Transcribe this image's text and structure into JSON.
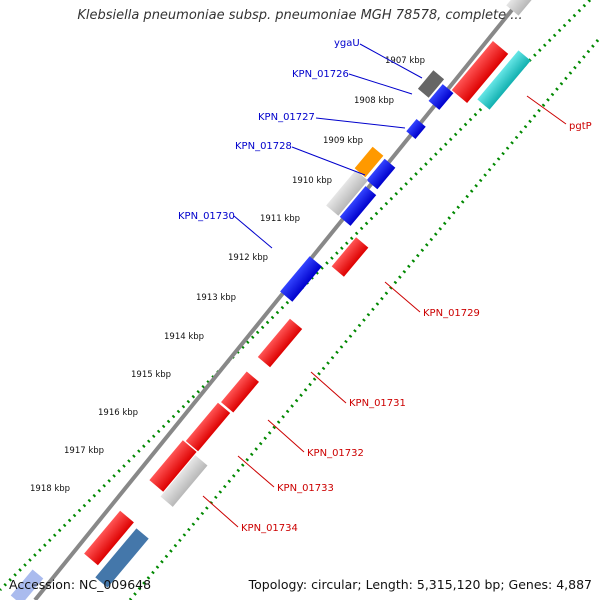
{
  "title": "Klebsiella pneumoniae subsp. pneumoniae MGH 78578, complete ...",
  "footer": {
    "accession": "Accession: NC_009648",
    "summary": "Topology: circular; Length: 5,315,120 bp; Genes: 4,887"
  },
  "colors": {
    "forward_gene": "#0000ee",
    "reverse_gene": "#ee0000",
    "orange_gene": "#ff9900",
    "grey_gene": "#cccccc",
    "dark_grey_gene": "#666666",
    "cyan_gene": "#22cccc",
    "steel_gene": "#4477aa",
    "backbone": "#888888",
    "dots": "#008800",
    "label_forward": "#0000cc",
    "label_reverse": "#cc0000"
  },
  "ticks": [
    "1907 kbp",
    "1908 kbp",
    "1909 kbp",
    "1910 kbp",
    "1911 kbp",
    "1912 kbp",
    "1913 kbp",
    "1914 kbp",
    "1915 kbp",
    "1916 kbp",
    "1917 kbp",
    "1918 kbp"
  ],
  "gene_labels": {
    "ygaU": "ygaU",
    "KPN_01726": "KPN_01726",
    "KPN_01727": "KPN_01727",
    "KPN_01728": "KPN_01728",
    "KPN_01730": "KPN_01730",
    "pgtP": "pgtP",
    "KPN_01729": "KPN_01729",
    "KPN_01731": "KPN_01731",
    "KPN_01732": "KPN_01732",
    "KPN_01733": "KPN_01733",
    "KPN_01734": "KPN_01734"
  }
}
